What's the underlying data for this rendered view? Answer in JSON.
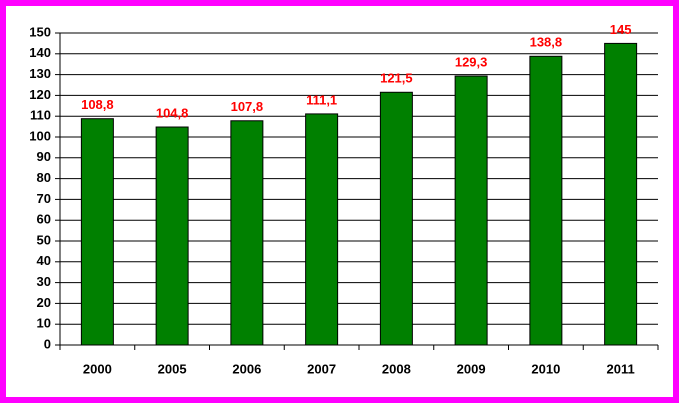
{
  "chart_data": {
    "type": "bar",
    "categories": [
      "2000",
      "2005",
      "2006",
      "2007",
      "2008",
      "2009",
      "2010",
      "2011"
    ],
    "values": [
      108.8,
      104.8,
      107.8,
      111.1,
      121.5,
      129.3,
      138.8,
      145
    ],
    "value_labels": [
      "108,8",
      "104,8",
      "107,8",
      "111,1",
      "121,5",
      "129,3",
      "138,8",
      "145"
    ],
    "color": "#008000",
    "label_color": "#ff0000",
    "ylim": [
      0,
      150
    ],
    "yticks": [
      0,
      10,
      20,
      30,
      40,
      50,
      60,
      70,
      80,
      90,
      100,
      110,
      120,
      130,
      140,
      150
    ],
    "grid": true
  }
}
